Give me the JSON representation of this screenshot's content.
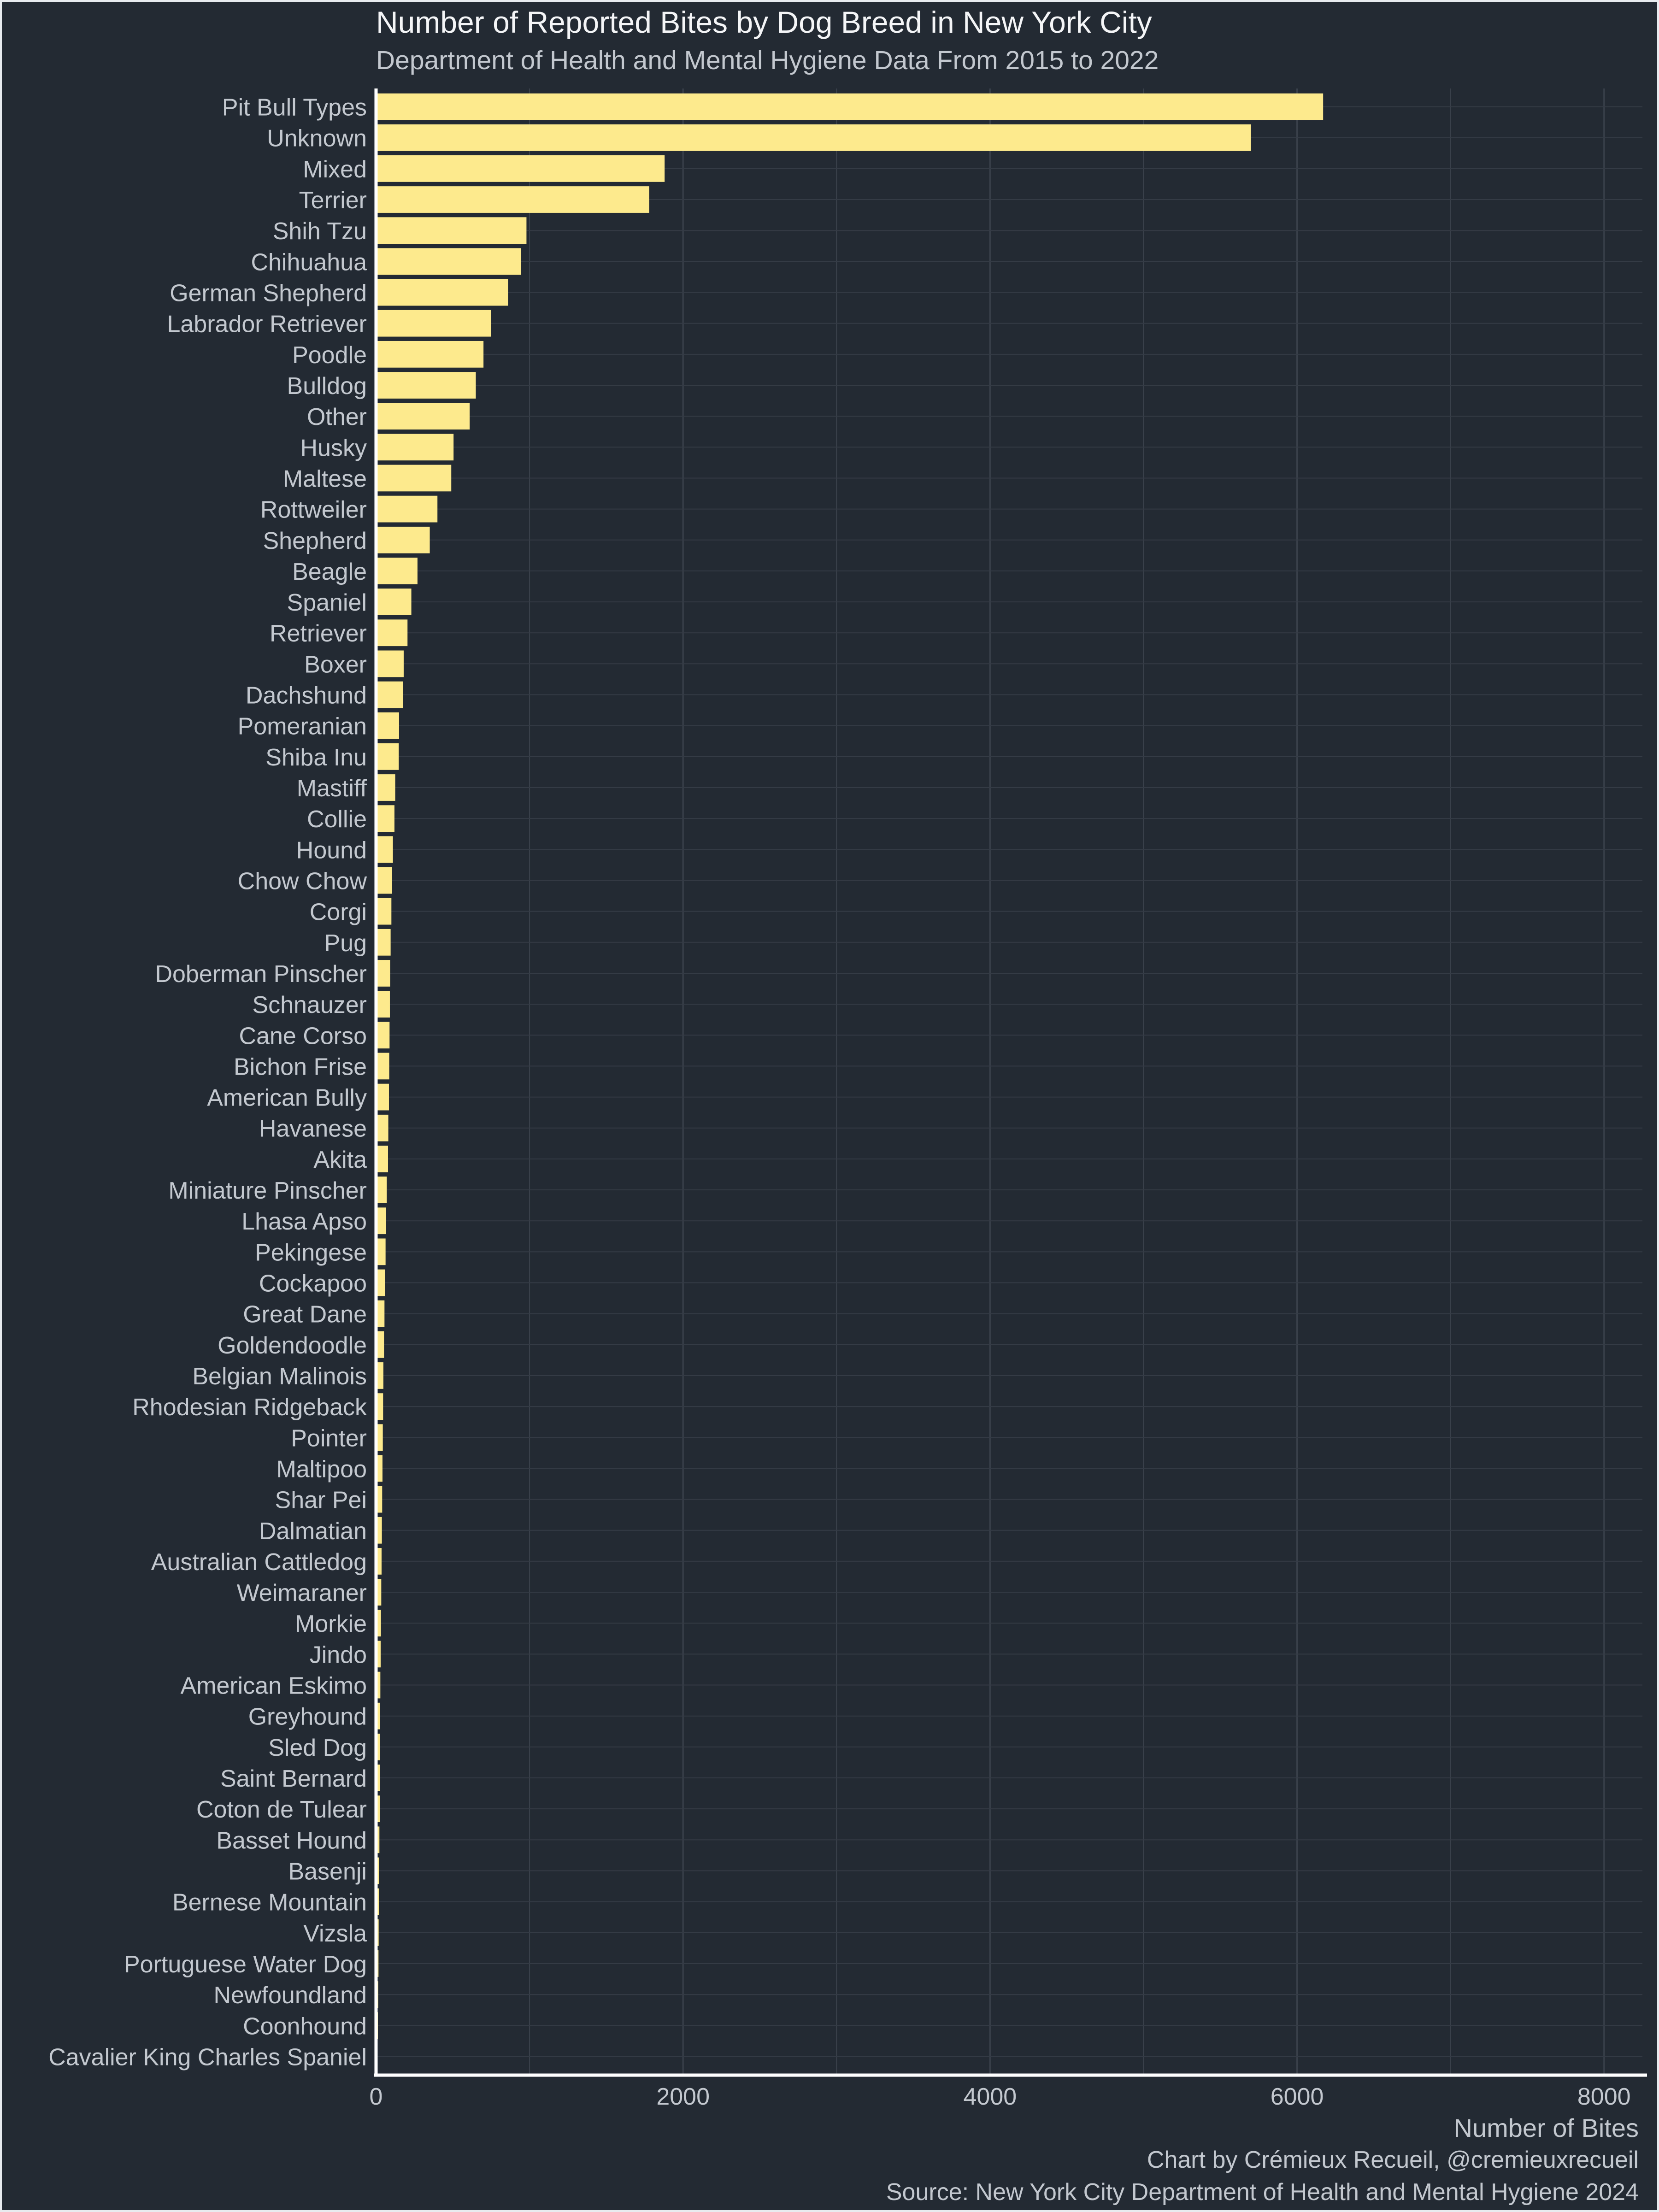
{
  "chart_data": {
    "type": "bar",
    "orientation": "horizontal",
    "title": "Number of Reported Bites by Dog Breed in New York City",
    "subtitle": "Department of Health and Mental Hygiene Data From 2015 to 2022",
    "xlabel": "Number of Bites",
    "ylabel": "",
    "xlim": [
      0,
      8250
    ],
    "xticks": [
      0,
      2000,
      4000,
      6000,
      8000
    ],
    "grid": true,
    "bar_color": "#fdea8d",
    "categories": [
      "Pit Bull Types",
      "Unknown",
      "Mixed",
      "Terrier",
      "Shih Tzu",
      "Chihuahua",
      "German Shepherd",
      "Labrador Retriever",
      "Poodle",
      "Bulldog",
      "Other",
      "Husky",
      "Maltese",
      "Rottweiler",
      "Shepherd",
      "Beagle",
      "Spaniel",
      "Retriever",
      "Boxer",
      "Dachshund",
      "Pomeranian",
      "Shiba Inu",
      "Mastiff",
      "Collie",
      "Hound",
      "Chow Chow",
      "Corgi",
      "Pug",
      "Doberman Pinscher",
      "Schnauzer",
      "Cane Corso",
      "Bichon Frise",
      "American Bully",
      "Havanese",
      "Akita",
      "Miniature Pinscher",
      "Lhasa Apso",
      "Pekingese",
      "Cockapoo",
      "Great Dane",
      "Goldendoodle",
      "Belgian Malinois",
      "Rhodesian Ridgeback",
      "Pointer",
      "Maltipoo",
      "Shar Pei",
      "Dalmatian",
      "Australian Cattledog",
      "Weimaraner",
      "Morkie",
      "Jindo",
      "American Eskimo",
      "Greyhound",
      "Sled Dog",
      "Saint Bernard",
      "Coton de Tulear",
      "Basset Hound",
      "Basenji",
      "Bernese Mountain",
      "Vizsla",
      "Portuguese Water Dog",
      "Newfoundland",
      "Coonhound",
      "Cavalier King Charles Spaniel"
    ],
    "values": [
      6170,
      5700,
      1880,
      1780,
      980,
      945,
      860,
      750,
      700,
      650,
      610,
      505,
      490,
      400,
      350,
      270,
      230,
      205,
      180,
      175,
      150,
      148,
      125,
      120,
      110,
      105,
      100,
      95,
      92,
      90,
      88,
      86,
      84,
      80,
      78,
      70,
      66,
      62,
      58,
      55,
      52,
      48,
      46,
      44,
      42,
      40,
      38,
      36,
      34,
      32,
      30,
      28,
      27,
      26,
      25,
      24,
      22,
      20,
      18,
      17,
      16,
      14,
      12,
      10
    ]
  },
  "caption": {
    "credit": "Chart by Crémieux Recueil, @cremieuxrecueil",
    "source": "Source: New York City Department of Health and Mental Hygiene 2024"
  }
}
